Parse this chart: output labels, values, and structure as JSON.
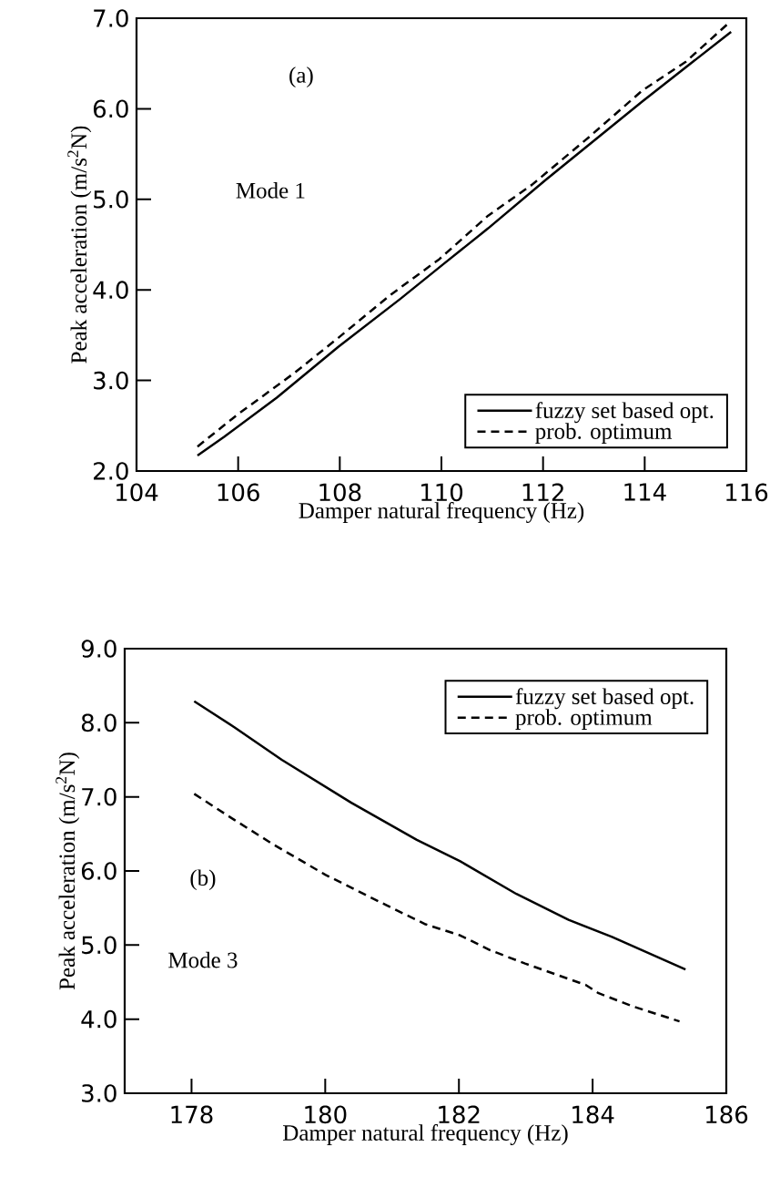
{
  "chart_data": [
    {
      "type": "line",
      "xlabel": "Damper natural frequency (Hz)",
      "ylabel": "Peak acceleration (m/s$^{2}$N)",
      "annotations": [
        "(a)",
        "Mode 1"
      ],
      "xlim": [
        104,
        116
      ],
      "xticks": [
        104,
        106,
        108,
        110,
        112,
        114,
        116
      ],
      "ylim": [
        2,
        7
      ],
      "yticks": [
        {
          "value": 2,
          "label": "2.0"
        },
        {
          "value": 3,
          "label": "3.0"
        },
        {
          "value": 4,
          "label": "4.0"
        },
        {
          "value": 5,
          "label": "5.0"
        },
        {
          "value": 6,
          "label": "6.0"
        },
        {
          "value": 7,
          "label": "7.0"
        }
      ],
      "legend": "bottom right",
      "grid": false,
      "series": [
        {
          "name": "fuzzy set based opt.",
          "color": "#000000",
          "line_style": "solid",
          "x": [
            105.2,
            105.73,
            106.76,
            107.97,
            109.19,
            110.05,
            110.92,
            112.04,
            113.95,
            115.7
          ],
          "values": [
            2.17,
            2.38,
            2.81,
            3.37,
            3.9,
            4.29,
            4.68,
            5.21,
            6.08,
            6.85
          ]
        },
        {
          "name": "prob. optimum",
          "color": "#000000",
          "line_style": "dashed",
          "x": [
            105.2,
            105.98,
            107.1,
            107.97,
            109.01,
            109.96,
            110.92,
            111.78,
            112.91,
            113.95,
            114.81,
            115.64
          ],
          "values": [
            2.27,
            2.62,
            3.08,
            3.47,
            3.95,
            4.34,
            4.82,
            5.16,
            5.69,
            6.2,
            6.52,
            6.94
          ]
        }
      ]
    },
    {
      "type": "line",
      "xlabel": "Damper natural frequency (Hz)",
      "ylabel": "Peak acceleration (m/s$^{2}$N)",
      "annotations": [
        "(b)",
        "Mode 3"
      ],
      "xlim": [
        177,
        186
      ],
      "xticks": [
        178,
        180,
        182,
        184,
        186
      ],
      "ylim": [
        3,
        9
      ],
      "yticks": [
        {
          "value": 3,
          "label": "3.0"
        },
        {
          "value": 4,
          "label": "4.0"
        },
        {
          "value": 5,
          "label": "5.0"
        },
        {
          "value": 6,
          "label": "6.0"
        },
        {
          "value": 7,
          "label": "7.0"
        },
        {
          "value": 8,
          "label": "8.0"
        },
        {
          "value": 9,
          "label": "9.0"
        }
      ],
      "legend": "top right",
      "grid": false,
      "series": [
        {
          "name": "fuzzy set based opt.",
          "color": "#000000",
          "line_style": "solid",
          "x": [
            178.04,
            178.64,
            179.35,
            180.39,
            181.37,
            182.02,
            182.86,
            183.64,
            184.29,
            185.39
          ],
          "values": [
            8.29,
            7.94,
            7.5,
            6.92,
            6.42,
            6.13,
            5.69,
            5.34,
            5.11,
            4.67
          ]
        },
        {
          "name": "prob. optimum",
          "color": "#000000",
          "line_style": "dashed",
          "x": [
            178.04,
            178.64,
            179.22,
            180.0,
            180.91,
            181.5,
            182.02,
            182.47,
            182.99,
            183.9,
            184.09,
            184.61,
            185.3
          ],
          "values": [
            7.04,
            6.69,
            6.36,
            5.95,
            5.54,
            5.28,
            5.13,
            4.93,
            4.75,
            4.46,
            4.35,
            4.17,
            3.97
          ]
        }
      ]
    }
  ]
}
